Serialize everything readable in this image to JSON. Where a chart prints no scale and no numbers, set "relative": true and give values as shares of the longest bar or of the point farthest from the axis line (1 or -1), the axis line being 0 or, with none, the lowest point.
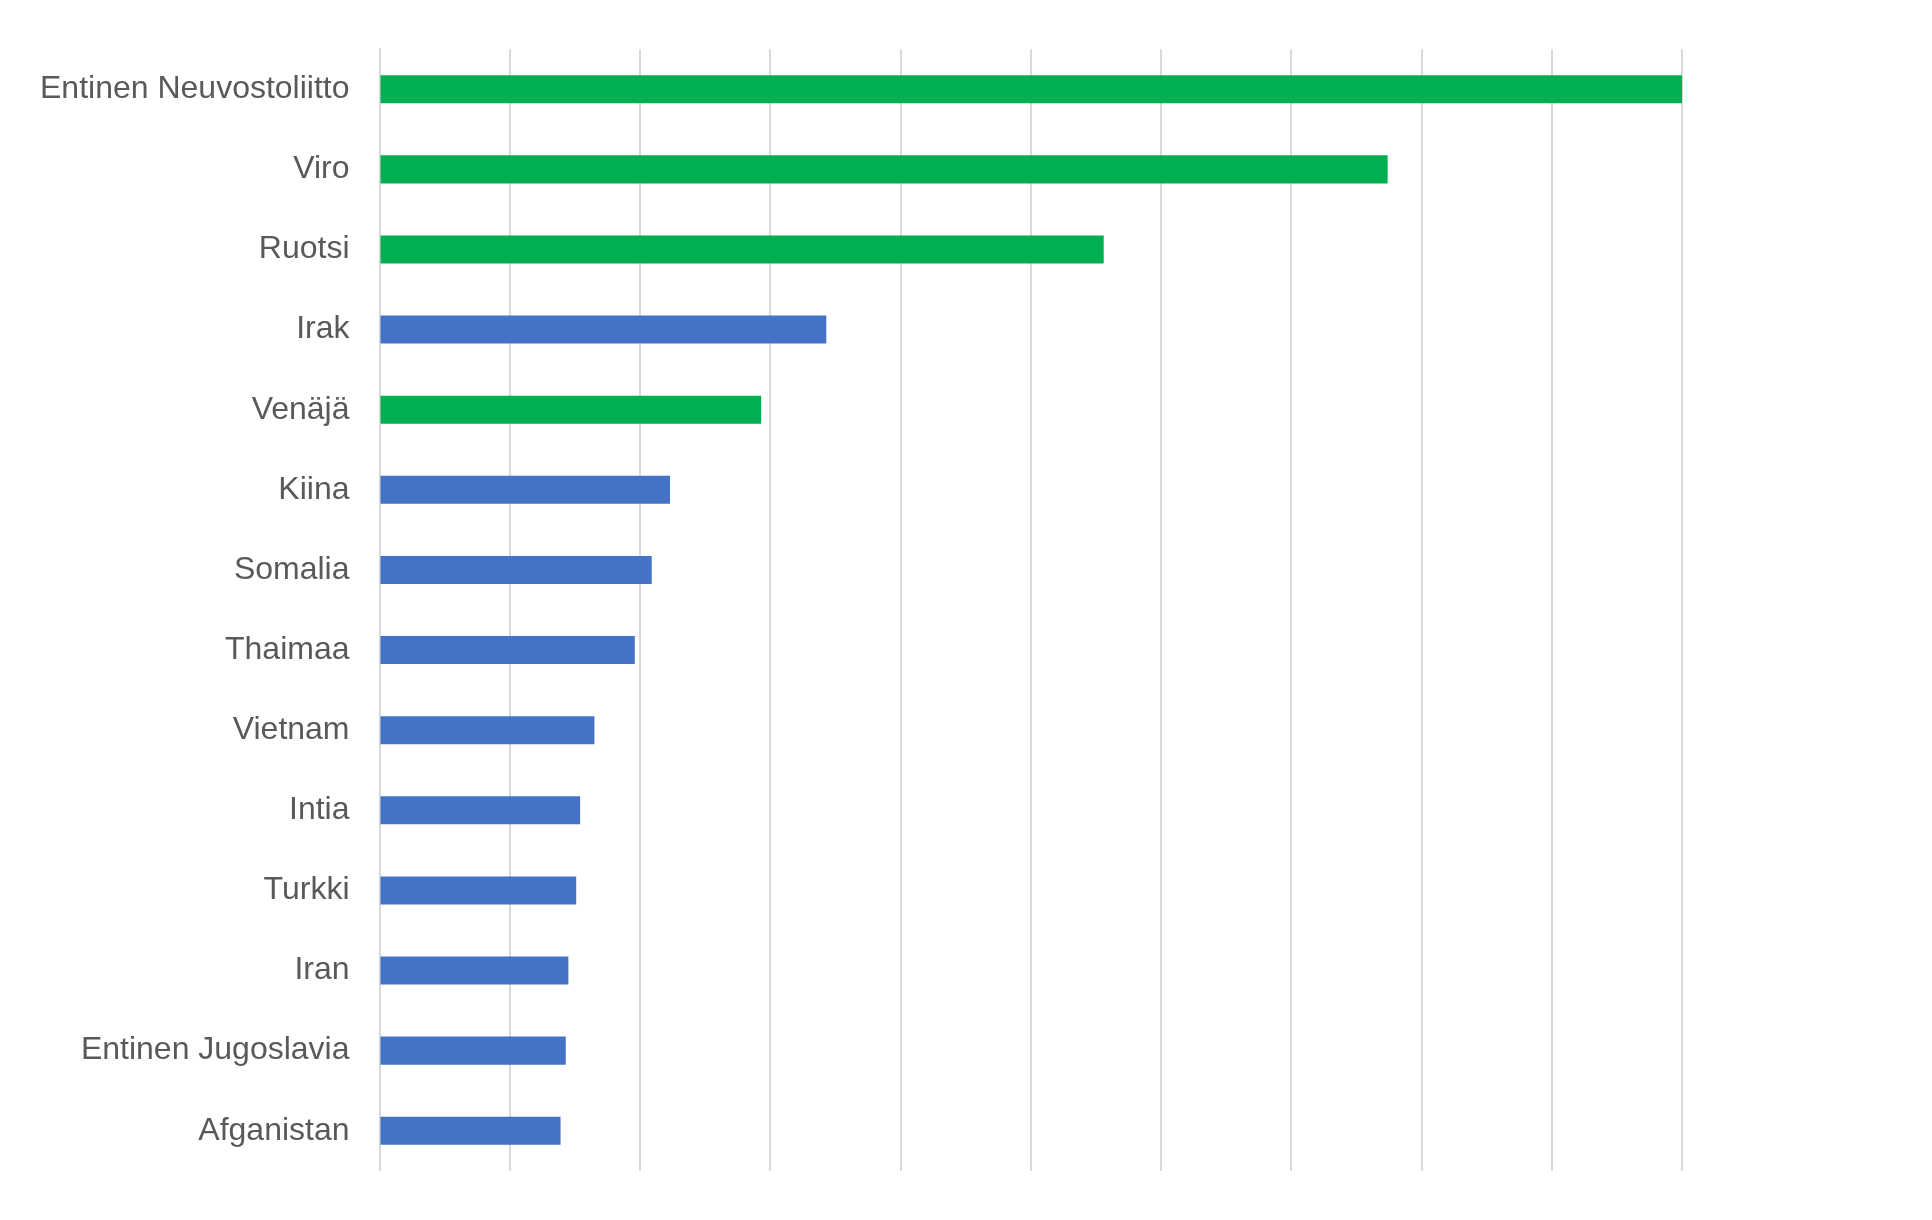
{
  "chart_data": {
    "type": "bar",
    "orientation": "horizontal",
    "relative": true,
    "grid": "x",
    "categories": [
      "Entinen Neuvostoliitto",
      "Viro",
      "Ruotsi",
      "Irak",
      "Venäjä",
      "Kiina",
      "Somalia",
      "Thaimaa",
      "Vietnam",
      "Intia",
      "Turkki",
      "Iran",
      "Entinen Jugoslavia",
      "Afganistan"
    ],
    "values": [
      1,
      0.774,
      0.556,
      0.343,
      0.293,
      0.223,
      0.209,
      0.196,
      0.165,
      0.154,
      0.151,
      0.145,
      0.143,
      0.139
    ],
    "colors": [
      "#00b050",
      "#00b050",
      "#00b050",
      "#4472c4",
      "#00b050",
      "#4472c4",
      "#4472c4",
      "#4472c4",
      "#4472c4",
      "#4472c4",
      "#4472c4",
      "#4472c4",
      "#4472c4",
      "#4472c4"
    ]
  }
}
